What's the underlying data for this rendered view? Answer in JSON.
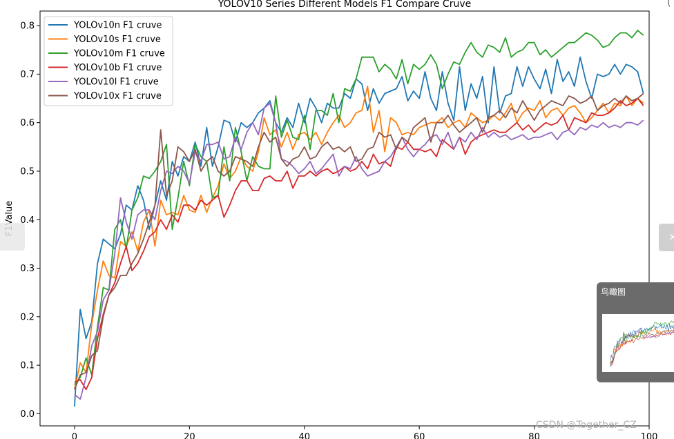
{
  "chart_data": {
    "type": "line",
    "title": "YOLOV10 Series Different Models F1 Compare Cruve",
    "xlabel": "",
    "ylabel": "F1Value",
    "xlim": [
      -6,
      100
    ],
    "ylim": [
      -0.025,
      0.83
    ],
    "xticks": [
      0,
      20,
      40,
      60,
      80,
      100
    ],
    "yticks": [
      0.0,
      0.1,
      0.2,
      0.3,
      0.4,
      0.5,
      0.6,
      0.7,
      0.8
    ],
    "grid": false,
    "legend_position": "top-left",
    "x": [
      0,
      1,
      2,
      3,
      4,
      5,
      6,
      7,
      8,
      9,
      10,
      11,
      12,
      13,
      14,
      15,
      16,
      17,
      18,
      19,
      20,
      21,
      22,
      23,
      24,
      25,
      26,
      27,
      28,
      29,
      30,
      31,
      32,
      33,
      34,
      35,
      36,
      37,
      38,
      39,
      40,
      41,
      42,
      43,
      44,
      45,
      46,
      47,
      48,
      49,
      50,
      51,
      52,
      53,
      54,
      55,
      56,
      57,
      58,
      59,
      60,
      61,
      62,
      63,
      64,
      65,
      66,
      67,
      68,
      69,
      70,
      71,
      72,
      73,
      74,
      75,
      76,
      77,
      78,
      79,
      80,
      81,
      82,
      83,
      84,
      85,
      86,
      87,
      88,
      89,
      90,
      91,
      92,
      93,
      94,
      95,
      96,
      97,
      98,
      99
    ],
    "series": [
      {
        "name": "YOLOv10n F1 cruve",
        "color": "#1f77b4",
        "values": [
          0.015,
          0.215,
          0.155,
          0.19,
          0.31,
          0.36,
          0.35,
          0.34,
          0.37,
          0.43,
          0.42,
          0.47,
          0.44,
          0.38,
          0.43,
          0.48,
          0.44,
          0.52,
          0.49,
          0.53,
          0.52,
          0.56,
          0.51,
          0.59,
          0.51,
          0.55,
          0.605,
          0.6,
          0.56,
          0.6,
          0.59,
          0.6,
          0.62,
          0.63,
          0.645,
          0.6,
          0.58,
          0.61,
          0.59,
          0.64,
          0.6,
          0.65,
          0.63,
          0.6,
          0.64,
          0.63,
          0.63,
          0.66,
          0.65,
          0.69,
          0.68,
          0.625,
          0.67,
          0.64,
          0.66,
          0.665,
          0.67,
          0.695,
          0.645,
          0.665,
          0.65,
          0.705,
          0.65,
          0.625,
          0.705,
          0.64,
          0.605,
          0.715,
          0.625,
          0.68,
          0.65,
          0.695,
          0.6,
          0.715,
          0.62,
          0.655,
          0.66,
          0.715,
          0.675,
          0.715,
          0.69,
          0.67,
          0.71,
          0.66,
          0.73,
          0.685,
          0.705,
          0.675,
          0.735,
          0.685,
          0.65,
          0.7,
          0.695,
          0.7,
          0.72,
          0.7,
          0.72,
          0.715,
          0.705,
          0.66
        ]
      },
      {
        "name": "YOLOv10s F1 cruve",
        "color": "#ff7f0e",
        "values": [
          0.05,
          0.105,
          0.085,
          0.185,
          0.255,
          0.315,
          0.285,
          0.28,
          0.355,
          0.345,
          0.375,
          0.335,
          0.395,
          0.42,
          0.345,
          0.44,
          0.41,
          0.415,
          0.41,
          0.45,
          0.42,
          0.415,
          0.45,
          0.415,
          0.445,
          0.47,
          0.515,
          0.485,
          0.5,
          0.53,
          0.51,
          0.5,
          0.54,
          0.61,
          0.575,
          0.585,
          0.55,
          0.58,
          0.545,
          0.575,
          0.58,
          0.565,
          0.58,
          0.555,
          0.58,
          0.6,
          0.615,
          0.59,
          0.6,
          0.62,
          0.625,
          0.675,
          0.58,
          0.625,
          0.54,
          0.61,
          0.6,
          0.575,
          0.58,
          0.575,
          0.59,
          0.595,
          0.6,
          0.6,
          0.61,
          0.59,
          0.6,
          0.605,
          0.59,
          0.62,
          0.61,
          0.6,
          0.605,
          0.615,
          0.605,
          0.62,
          0.64,
          0.6,
          0.62,
          0.63,
          0.625,
          0.645,
          0.61,
          0.625,
          0.63,
          0.615,
          0.63,
          0.635,
          0.62,
          0.6,
          0.61,
          0.625,
          0.64,
          0.62,
          0.64,
          0.635,
          0.655,
          0.635,
          0.65,
          0.64
        ]
      },
      {
        "name": "YOLOv10m F1 cruve",
        "color": "#2ca02c",
        "values": [
          0.06,
          0.075,
          0.115,
          0.08,
          0.18,
          0.26,
          0.255,
          0.38,
          0.4,
          0.34,
          0.42,
          0.445,
          0.49,
          0.485,
          0.5,
          0.52,
          0.555,
          0.38,
          0.445,
          0.52,
          0.47,
          0.555,
          0.53,
          0.52,
          0.445,
          0.45,
          0.55,
          0.48,
          0.59,
          0.54,
          0.48,
          0.53,
          0.51,
          0.505,
          0.505,
          0.655,
          0.57,
          0.605,
          0.57,
          0.565,
          0.615,
          0.545,
          0.625,
          0.625,
          0.615,
          0.66,
          0.6,
          0.67,
          0.665,
          0.69,
          0.735,
          0.735,
          0.735,
          0.705,
          0.72,
          0.71,
          0.69,
          0.73,
          0.68,
          0.72,
          0.71,
          0.72,
          0.74,
          0.72,
          0.67,
          0.7,
          0.725,
          0.72,
          0.745,
          0.765,
          0.745,
          0.735,
          0.76,
          0.755,
          0.745,
          0.775,
          0.735,
          0.745,
          0.75,
          0.765,
          0.765,
          0.74,
          0.75,
          0.735,
          0.745,
          0.755,
          0.765,
          0.765,
          0.775,
          0.785,
          0.78,
          0.77,
          0.755,
          0.76,
          0.775,
          0.785,
          0.785,
          0.775,
          0.79,
          0.78
        ]
      },
      {
        "name": "YOLOv10b F1 cruve",
        "color": "#d62728",
        "values": [
          0.065,
          0.07,
          0.05,
          0.075,
          0.155,
          0.205,
          0.245,
          0.27,
          0.31,
          0.345,
          0.295,
          0.31,
          0.335,
          0.365,
          0.375,
          0.4,
          0.38,
          0.41,
          0.395,
          0.43,
          0.43,
          0.42,
          0.44,
          0.43,
          0.44,
          0.45,
          0.405,
          0.43,
          0.46,
          0.48,
          0.48,
          0.46,
          0.46,
          0.485,
          0.49,
          0.48,
          0.48,
          0.5,
          0.465,
          0.49,
          0.49,
          0.5,
          0.49,
          0.5,
          0.505,
          0.495,
          0.5,
          0.51,
          0.5,
          0.505,
          0.52,
          0.505,
          0.535,
          0.515,
          0.52,
          0.51,
          0.55,
          0.545,
          0.56,
          0.545,
          0.545,
          0.54,
          0.545,
          0.53,
          0.565,
          0.555,
          0.545,
          0.57,
          0.535,
          0.56,
          0.57,
          0.575,
          0.58,
          0.585,
          0.58,
          0.58,
          0.59,
          0.6,
          0.585,
          0.595,
          0.58,
          0.59,
          0.6,
          0.595,
          0.6,
          0.615,
          0.585,
          0.61,
          0.605,
          0.6,
          0.62,
          0.615,
          0.615,
          0.62,
          0.63,
          0.645,
          0.635,
          0.64,
          0.65,
          0.635
        ]
      },
      {
        "name": "YOLOv10l F1 cruve",
        "color": "#9467bd",
        "values": [
          0.04,
          0.03,
          0.075,
          0.14,
          0.17,
          0.235,
          0.255,
          0.33,
          0.445,
          0.395,
          0.36,
          0.41,
          0.42,
          0.42,
          0.4,
          0.46,
          0.5,
          0.495,
          0.51,
          0.5,
          0.475,
          0.54,
          0.52,
          0.555,
          0.555,
          0.56,
          0.525,
          0.53,
          0.57,
          0.545,
          0.58,
          0.6,
          0.575,
          0.63,
          0.64,
          0.6,
          0.525,
          0.52,
          0.51,
          0.495,
          0.505,
          0.52,
          0.495,
          0.505,
          0.52,
          0.535,
          0.49,
          0.51,
          0.505,
          0.53,
          0.505,
          0.49,
          0.495,
          0.5,
          0.52,
          0.53,
          0.55,
          0.57,
          0.545,
          0.53,
          0.545,
          0.555,
          0.57,
          0.575,
          0.555,
          0.58,
          0.545,
          0.57,
          0.56,
          0.58,
          0.565,
          0.59,
          0.57,
          0.58,
          0.57,
          0.575,
          0.565,
          0.57,
          0.575,
          0.565,
          0.57,
          0.57,
          0.575,
          0.58,
          0.565,
          0.58,
          0.585,
          0.575,
          0.59,
          0.585,
          0.595,
          0.59,
          0.6,
          0.59,
          0.595,
          0.59,
          0.6,
          0.6,
          0.595,
          0.605
        ]
      },
      {
        "name": "YOLOv10x F1 cruve",
        "color": "#8c564b",
        "values": [
          0.05,
          0.08,
          0.085,
          0.12,
          0.13,
          0.2,
          0.245,
          0.26,
          0.285,
          0.285,
          0.31,
          0.33,
          0.36,
          0.395,
          0.43,
          0.585,
          0.45,
          0.48,
          0.55,
          0.54,
          0.52,
          0.545,
          0.5,
          0.52,
          0.53,
          0.5,
          0.49,
          0.5,
          0.53,
          0.525,
          0.52,
          0.51,
          0.55,
          0.58,
          0.56,
          0.57,
          0.525,
          0.51,
          0.525,
          0.53,
          0.55,
          0.525,
          0.53,
          0.55,
          0.56,
          0.545,
          0.55,
          0.54,
          0.55,
          0.52,
          0.525,
          0.545,
          0.55,
          0.58,
          0.57,
          0.575,
          0.545,
          0.57,
          0.56,
          0.59,
          0.6,
          0.61,
          0.56,
          0.6,
          0.6,
          0.615,
          0.595,
          0.58,
          0.59,
          0.6,
          0.61,
          0.58,
          0.61,
          0.615,
          0.625,
          0.61,
          0.63,
          0.62,
          0.645,
          0.625,
          0.605,
          0.625,
          0.635,
          0.645,
          0.64,
          0.635,
          0.655,
          0.65,
          0.64,
          0.645,
          0.655,
          0.625,
          0.635,
          0.64,
          0.65,
          0.64,
          0.655,
          0.645,
          0.65,
          0.66
        ]
      }
    ]
  },
  "overlay": {
    "birdseye_title": "鸟瞰图",
    "right_tab_glyph": "×",
    "watermark": "CSDN @Together_CZ",
    "corner_glyph": "("
  }
}
